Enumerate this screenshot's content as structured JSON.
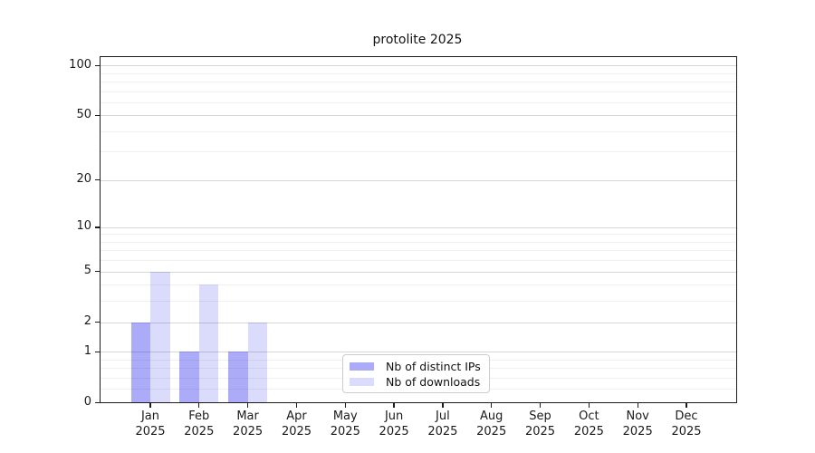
{
  "chart_data": {
    "type": "bar",
    "title": "protolite 2025",
    "categories": [
      {
        "month": "Jan",
        "year": "2025"
      },
      {
        "month": "Feb",
        "year": "2025"
      },
      {
        "month": "Mar",
        "year": "2025"
      },
      {
        "month": "Apr",
        "year": "2025"
      },
      {
        "month": "May",
        "year": "2025"
      },
      {
        "month": "Jun",
        "year": "2025"
      },
      {
        "month": "Jul",
        "year": "2025"
      },
      {
        "month": "Aug",
        "year": "2025"
      },
      {
        "month": "Sep",
        "year": "2025"
      },
      {
        "month": "Oct",
        "year": "2025"
      },
      {
        "month": "Nov",
        "year": "2025"
      },
      {
        "month": "Dec",
        "year": "2025"
      }
    ],
    "series": [
      {
        "name": "Nb of distinct IPs",
        "color": "rgba(0,0,230,0.33)",
        "values": [
          2,
          1,
          1,
          0,
          0,
          0,
          0,
          0,
          0,
          0,
          0,
          0
        ]
      },
      {
        "name": "Nb of downloads",
        "color": "rgba(0,0,230,0.14)",
        "values": [
          5,
          4,
          2,
          0,
          0,
          0,
          0,
          0,
          0,
          0,
          0,
          0
        ]
      }
    ],
    "y_axis": {
      "scale": "log1p",
      "major_ticks": [
        0,
        1,
        2,
        5,
        10,
        20,
        50,
        100
      ],
      "minor_gridlines": [
        0.2,
        0.4,
        0.6,
        0.8,
        3,
        4,
        6,
        7,
        8,
        9,
        30,
        40,
        60,
        70,
        80,
        90
      ],
      "max": 112
    },
    "grid": {
      "major_color": "#d6d6d6",
      "minor_color": "#f0f0f0",
      "on": true
    },
    "axis_color": "#1c1c1c",
    "background_color": "#ffffff",
    "legend_position": "bottom-center"
  }
}
